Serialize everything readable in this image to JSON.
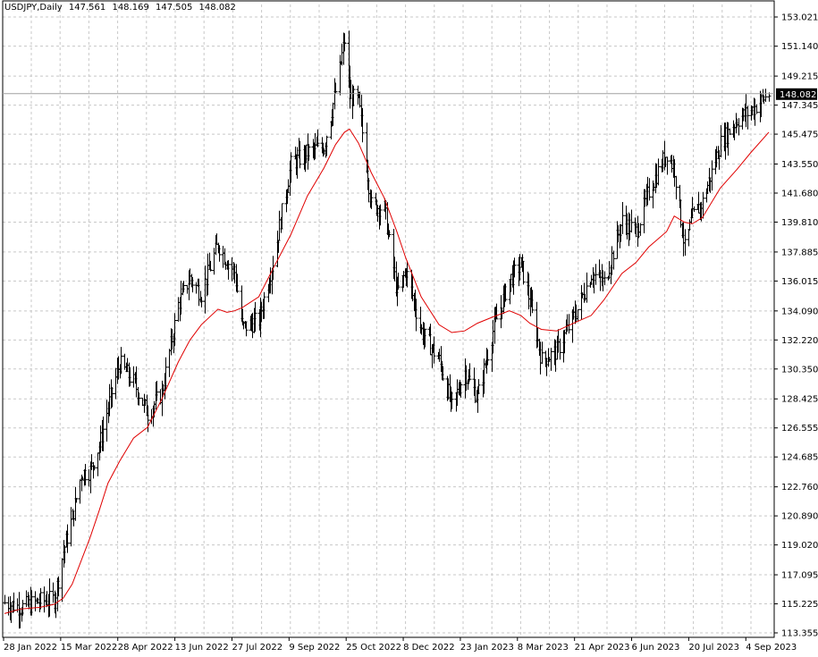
{
  "header": {
    "symbol": "USDJPY,Daily",
    "open": "147.561",
    "high": "148.169",
    "low": "147.505",
    "close": "148.082"
  },
  "current_price_label": "148.082",
  "colors": {
    "background": "#ffffff",
    "bars": "#000000",
    "moving_average": "#e00000",
    "grid": "#c8c8c8",
    "price_label_bg": "#000000",
    "price_label_text": "#ffffff",
    "price_line": "#a0a0a0"
  },
  "chart_data": {
    "type": "line",
    "title": "USDJPY,Daily",
    "grid": true,
    "ylim": [
      113.355,
      153.021
    ],
    "xlim": [
      "2022-01-28",
      "2023-09-18"
    ],
    "y_ticks": [
      "153.021",
      "151.140",
      "149.215",
      "147.345",
      "145.475",
      "143.550",
      "141.680",
      "139.810",
      "137.885",
      "136.015",
      "134.090",
      "132.220",
      "130.350",
      "128.425",
      "126.555",
      "124.685",
      "122.760",
      "120.890",
      "119.020",
      "117.095",
      "115.225",
      "113.355"
    ],
    "x_ticks": [
      "28 Jan 2022",
      "15 Mar 2022",
      "28 Apr 2022",
      "13 Jun 2022",
      "27 Jul 2022",
      "9 Sep 2022",
      "25 Oct 2022",
      "8 Dec 2022",
      "23 Jan 2023",
      "8 Mar 2023",
      "21 Apr 2023",
      "6 Jun 2023",
      "20 Jul 2023",
      "4 Sep 2023"
    ],
    "series": [
      {
        "type": "bars",
        "x": [
          "2022-01-28",
          "2022-02-10",
          "2022-02-25",
          "2022-03-08",
          "2022-03-15",
          "2022-03-22",
          "2022-03-29",
          "2022-04-05",
          "2022-04-12",
          "2022-04-19",
          "2022-04-28",
          "2022-05-09",
          "2022-05-20",
          "2022-05-31",
          "2022-06-13",
          "2022-06-22",
          "2022-07-01",
          "2022-07-14",
          "2022-07-21",
          "2022-07-27",
          "2022-08-02",
          "2022-08-15",
          "2022-08-26",
          "2022-09-09",
          "2022-09-22",
          "2022-10-05",
          "2022-10-14",
          "2022-10-21",
          "2022-10-25",
          "2022-11-01",
          "2022-11-11",
          "2022-11-21",
          "2022-12-01",
          "2022-12-08",
          "2022-12-20",
          "2023-01-03",
          "2023-01-13",
          "2023-01-23",
          "2023-02-02",
          "2023-02-14",
          "2023-02-27",
          "2023-03-08",
          "2023-03-15",
          "2023-03-24",
          "2023-04-05",
          "2023-04-21",
          "2023-05-02",
          "2023-05-12",
          "2023-05-26",
          "2023-06-06",
          "2023-06-16",
          "2023-06-30",
          "2023-07-06",
          "2023-07-14",
          "2023-07-20",
          "2023-07-28",
          "2023-08-11",
          "2023-08-24",
          "2023-09-04",
          "2023-09-18"
        ],
        "values": [
          115.3,
          115.0,
          115.4,
          115.5,
          118.6,
          120.8,
          123.6,
          123.8,
          125.4,
          127.9,
          130.7,
          129.5,
          127.5,
          128.8,
          134.5,
          136.2,
          135.2,
          138.4,
          137.3,
          136.6,
          133.0,
          133.5,
          137.3,
          143.5,
          144.3,
          144.7,
          148.2,
          151.5,
          147.9,
          147.6,
          140.9,
          140.7,
          135.2,
          136.7,
          132.8,
          130.9,
          127.9,
          130.2,
          128.5,
          132.8,
          136.1,
          137.1,
          134.7,
          130.9,
          131.5,
          134.2,
          136.5,
          135.9,
          139.9,
          139.2,
          141.8,
          144.3,
          143.2,
          138.1,
          140.1,
          141.1,
          144.9,
          146.4,
          147.0,
          148.08
        ]
      },
      {
        "type": "line",
        "name": "",
        "x": [
          "2022-01-28",
          "2022-02-10",
          "2022-02-25",
          "2022-03-08",
          "2022-03-15",
          "2022-03-22",
          "2022-03-29",
          "2022-04-05",
          "2022-04-12",
          "2022-04-19",
          "2022-04-28",
          "2022-05-09",
          "2022-05-20",
          "2022-05-31",
          "2022-06-13",
          "2022-06-22",
          "2022-07-01",
          "2022-07-14",
          "2022-07-21",
          "2022-07-27",
          "2022-08-02",
          "2022-08-15",
          "2022-08-26",
          "2022-09-09",
          "2022-09-22",
          "2022-10-05",
          "2022-10-14",
          "2022-10-21",
          "2022-10-25",
          "2022-11-01",
          "2022-11-11",
          "2022-11-21",
          "2022-12-01",
          "2022-12-08",
          "2022-12-20",
          "2023-01-03",
          "2023-01-13",
          "2023-01-23",
          "2023-02-02",
          "2023-02-14",
          "2023-02-27",
          "2023-03-08",
          "2023-03-15",
          "2023-03-24",
          "2023-04-05",
          "2023-04-21",
          "2023-05-02",
          "2023-05-12",
          "2023-05-26",
          "2023-06-06",
          "2023-06-16",
          "2023-06-30",
          "2023-07-06",
          "2023-07-14",
          "2023-07-20",
          "2023-07-28",
          "2023-08-11",
          "2023-08-24",
          "2023-09-04",
          "2023-09-18"
        ],
        "values": [
          114.6,
          114.9,
          115.0,
          115.2,
          115.6,
          116.5,
          118.0,
          119.5,
          121.2,
          123.0,
          124.4,
          125.9,
          126.6,
          128.4,
          130.8,
          132.2,
          133.2,
          134.2,
          134.0,
          134.1,
          134.3,
          135.0,
          136.8,
          139.0,
          141.5,
          143.3,
          144.8,
          145.6,
          145.8,
          144.9,
          143.0,
          141.4,
          139.2,
          137.5,
          135.0,
          133.2,
          132.7,
          132.8,
          133.3,
          133.7,
          134.1,
          133.8,
          133.3,
          132.9,
          132.8,
          133.4,
          133.8,
          134.8,
          136.5,
          137.2,
          138.2,
          139.2,
          140.2,
          139.8,
          139.7,
          140.1,
          142.0,
          143.2,
          144.3,
          145.6
        ]
      }
    ]
  }
}
